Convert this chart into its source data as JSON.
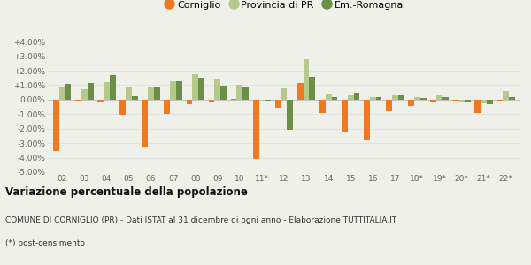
{
  "years": [
    "02",
    "03",
    "04",
    "05",
    "06",
    "07",
    "08",
    "09",
    "10",
    "11*",
    "12",
    "13",
    "14",
    "15",
    "16",
    "17",
    "18*",
    "19*",
    "20*",
    "21*",
    "22*"
  ],
  "corniglio": [
    -3.55,
    -0.07,
    -0.15,
    -1.05,
    -3.25,
    -1.0,
    -0.3,
    -0.1,
    0.05,
    -4.1,
    -0.55,
    1.15,
    -0.9,
    -2.2,
    -2.8,
    -0.8,
    -0.45,
    -0.15,
    -0.07,
    -0.95,
    -0.07
  ],
  "provincia_pr": [
    0.85,
    0.7,
    1.2,
    0.85,
    0.85,
    1.3,
    1.75,
    1.45,
    1.05,
    -0.05,
    0.8,
    2.8,
    0.45,
    0.35,
    0.15,
    0.3,
    0.2,
    0.35,
    -0.1,
    -0.25,
    0.6
  ],
  "em_romagna": [
    1.1,
    1.15,
    1.7,
    0.25,
    0.9,
    1.25,
    1.5,
    0.95,
    0.85,
    -0.08,
    -2.1,
    1.55,
    0.15,
    0.5,
    0.2,
    0.3,
    0.1,
    0.2,
    -0.1,
    -0.3,
    0.2
  ],
  "color_corniglio": "#f07820",
  "color_provincia": "#b5c98a",
  "color_emromagna": "#6b8f48",
  "title": "Variazione percentuale della popolazione",
  "subtitle": "COMUNE DI CORNIGLIO (PR) - Dati ISTAT al 31 dicembre di ogni anno - Elaborazione TUTTITALIA.IT",
  "footnote": "(*) post-censimento",
  "legend_labels": [
    "Corniglio",
    "Provincia di PR",
    "Em.-Romagna"
  ],
  "ylim": [
    -5.0,
    4.5
  ],
  "yticks": [
    -5.0,
    -4.0,
    -3.0,
    -2.0,
    -1.0,
    0.0,
    1.0,
    2.0,
    3.0,
    4.0
  ],
  "bg_color": "#f0f0ea",
  "plot_bg_color": "#f0f0ea"
}
